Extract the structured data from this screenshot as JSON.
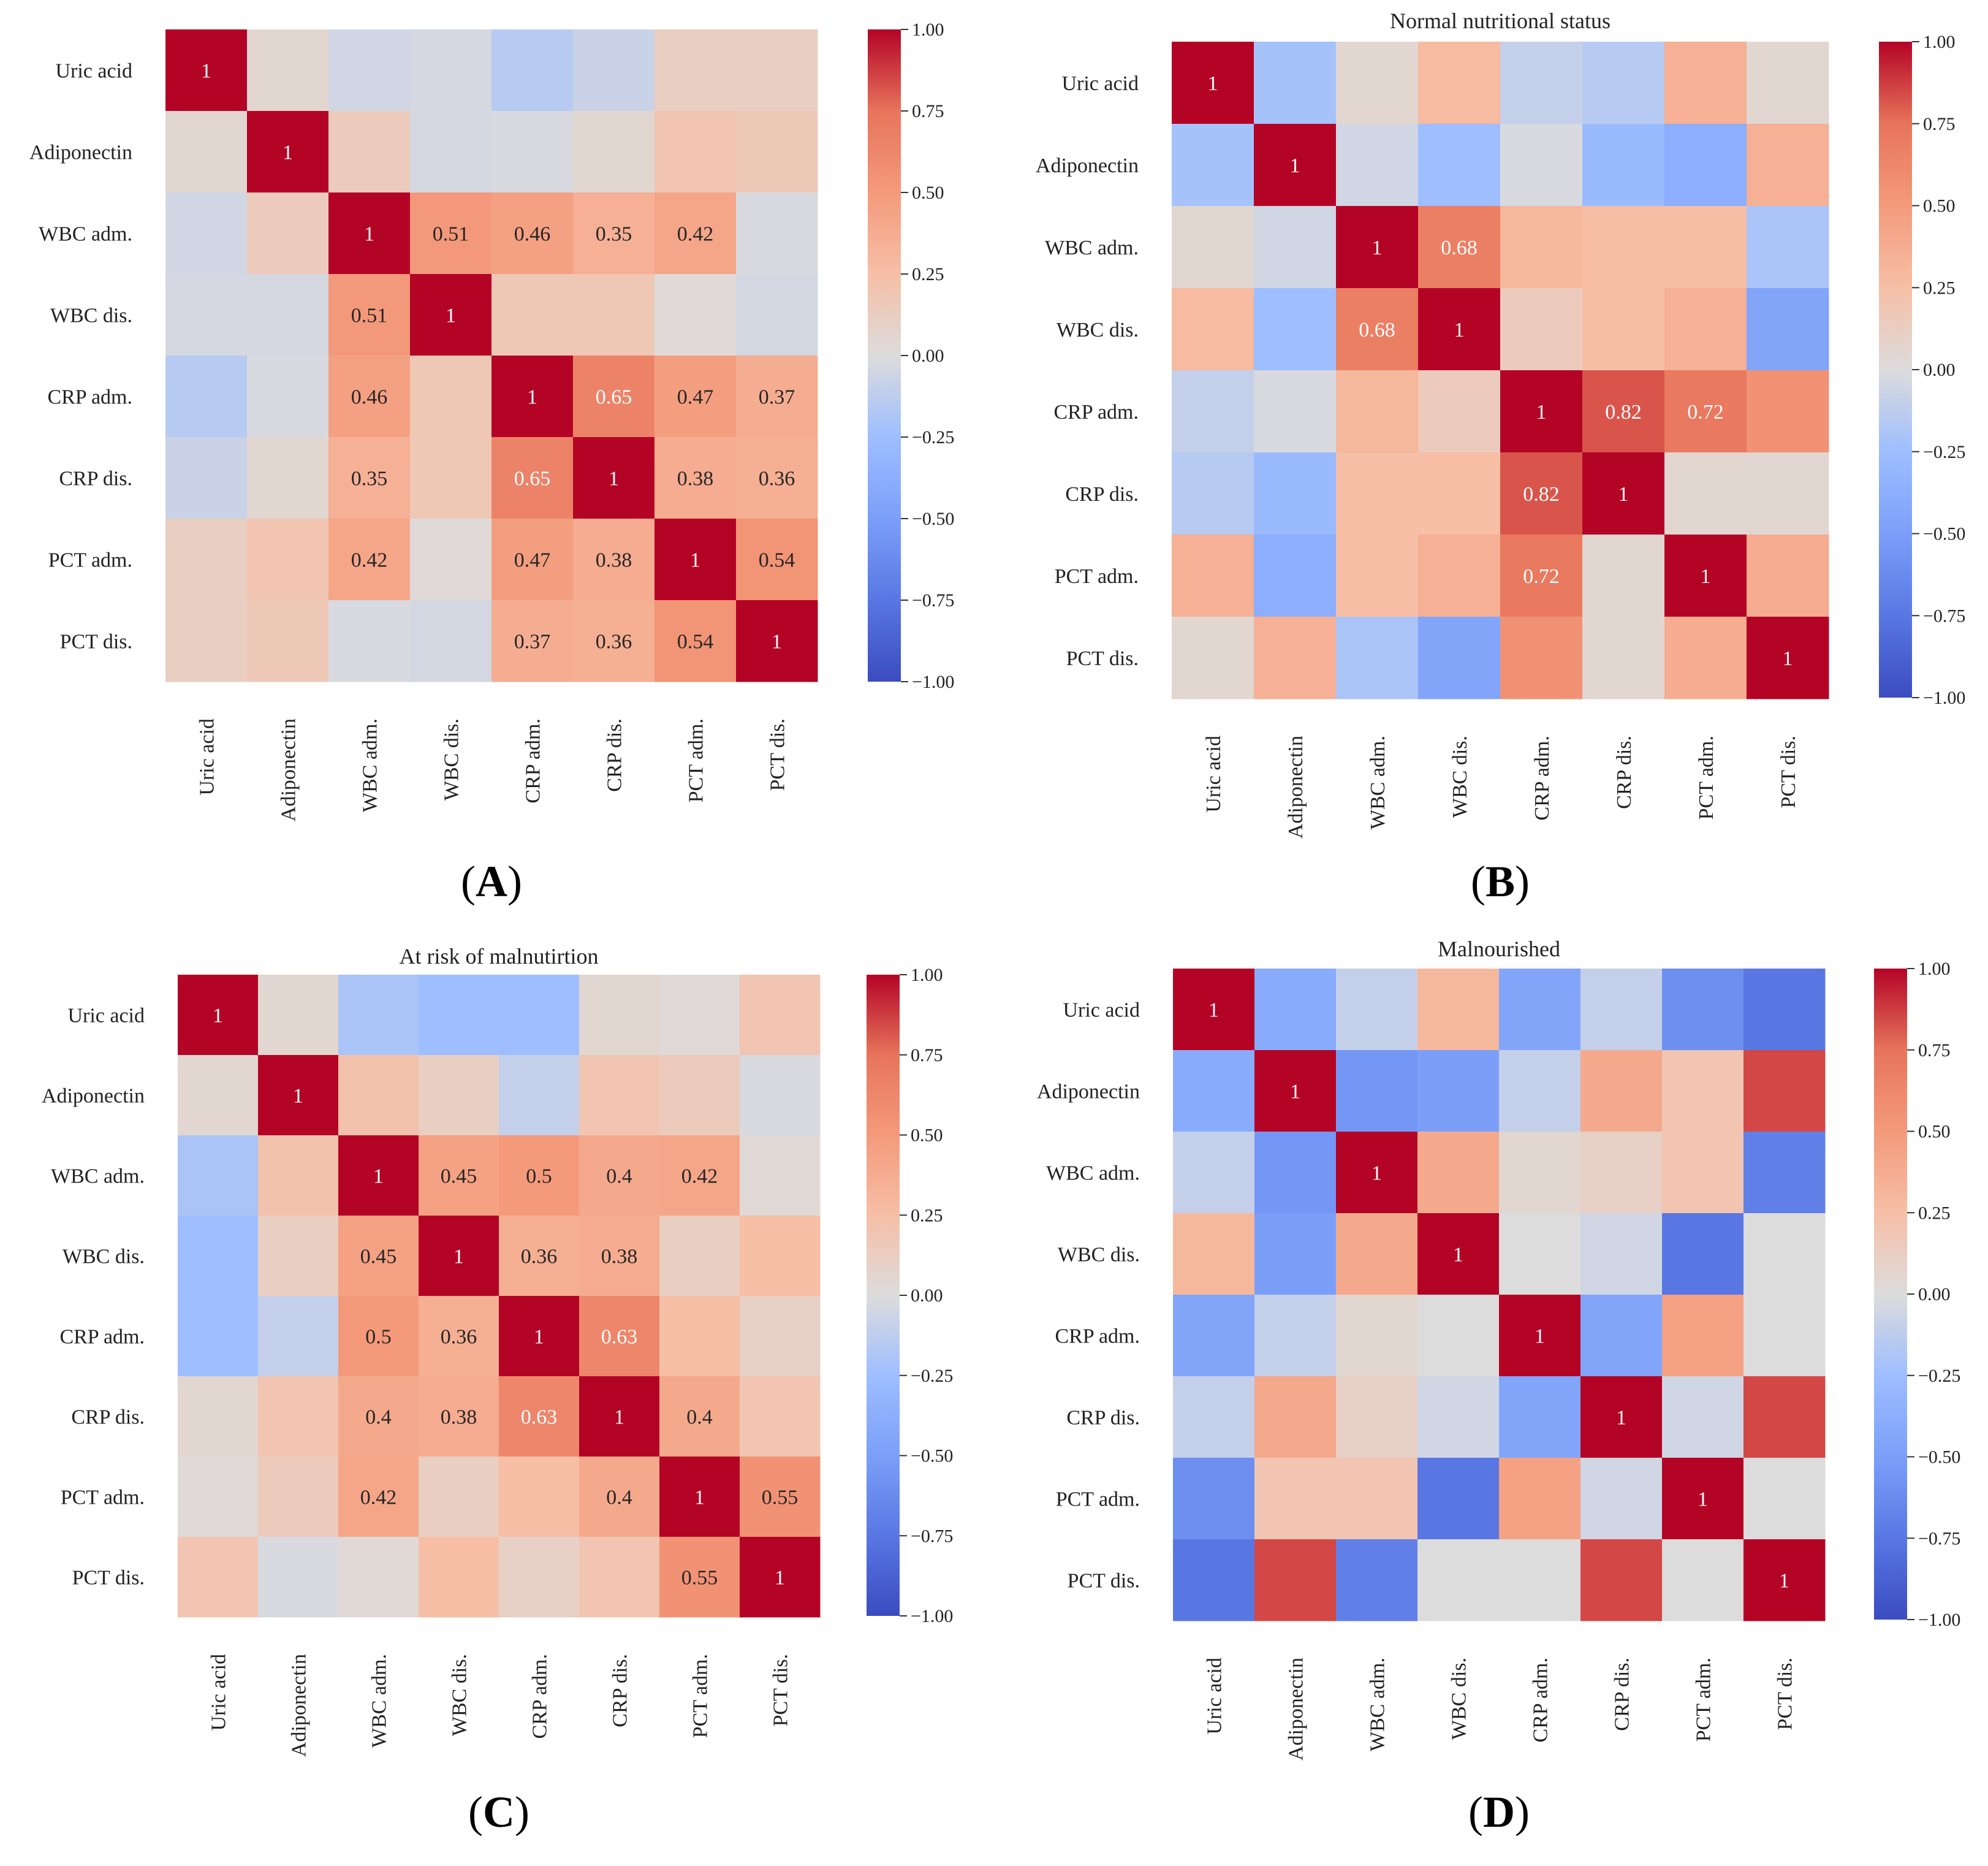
{
  "variables": [
    "Uric acid",
    "Adiponectin",
    "WBC adm.",
    "WBC dis.",
    "CRP adm.",
    "CRP dis.",
    "PCT adm.",
    "PCT dis."
  ],
  "colorscale": {
    "name": "coolwarm",
    "min": -1.0,
    "max": 1.0,
    "ticks": [
      "1.00",
      "0.75",
      "0.50",
      "0.25",
      "0.00",
      "−0.25",
      "−0.50",
      "−0.75",
      "−1.00"
    ]
  },
  "chart_data": [
    {
      "type": "heatmap",
      "panel": "A",
      "caption_letter": "A",
      "title": "",
      "labels": [
        "Uric acid",
        "Adiponectin",
        "WBC adm.",
        "WBC dis.",
        "CRP adm.",
        "CRP dis.",
        "PCT adm.",
        "PCT dis."
      ],
      "values": [
        [
          1.0,
          0.05,
          -0.05,
          -0.03,
          -0.15,
          -0.08,
          0.12,
          0.12
        ],
        [
          0.05,
          1.0,
          0.15,
          -0.03,
          -0.02,
          0.05,
          0.2,
          0.17
        ],
        [
          -0.05,
          0.15,
          1.0,
          0.51,
          0.46,
          0.35,
          0.42,
          -0.02
        ],
        [
          -0.03,
          -0.03,
          0.51,
          1.0,
          0.18,
          0.18,
          0.02,
          -0.04
        ],
        [
          -0.15,
          -0.02,
          0.46,
          0.18,
          1.0,
          0.65,
          0.47,
          0.37
        ],
        [
          -0.08,
          0.05,
          0.35,
          0.18,
          0.65,
          1.0,
          0.38,
          0.36
        ],
        [
          0.12,
          0.2,
          0.42,
          0.02,
          0.47,
          0.38,
          1.0,
          0.54
        ],
        [
          0.12,
          0.17,
          -0.02,
          -0.04,
          0.37,
          0.36,
          0.54,
          1.0
        ]
      ],
      "annotations": [
        [
          "1",
          "",
          "",
          "",
          "",
          "",
          "",
          ""
        ],
        [
          "",
          "1",
          "",
          "",
          "",
          "",
          "",
          ""
        ],
        [
          "",
          "",
          "1",
          "0.51",
          "0.46",
          "0.35",
          "0.42",
          ""
        ],
        [
          "",
          "",
          "0.51",
          "1",
          "",
          "",
          "",
          ""
        ],
        [
          "",
          "",
          "0.46",
          "",
          "1",
          "0.65",
          "0.47",
          "0.37"
        ],
        [
          "",
          "",
          "0.35",
          "",
          "0.65",
          "1",
          "0.38",
          "0.36"
        ],
        [
          "",
          "",
          "0.42",
          "",
          "0.47",
          "0.38",
          "1",
          "0.54"
        ],
        [
          "",
          "",
          "",
          "",
          "0.37",
          "0.36",
          "0.54",
          "1"
        ]
      ]
    },
    {
      "type": "heatmap",
      "panel": "B",
      "caption_letter": "B",
      "title": "Normal nutritional status",
      "labels": [
        "Uric acid",
        "Adiponectin",
        "WBC adm.",
        "WBC dis.",
        "CRP adm.",
        "CRP dis.",
        "PCT adm.",
        "PCT dis."
      ],
      "values": [
        [
          1.0,
          -0.22,
          0.05,
          0.28,
          -0.1,
          -0.15,
          0.35,
          0.05
        ],
        [
          -0.22,
          1.0,
          -0.05,
          -0.25,
          -0.02,
          -0.28,
          -0.38,
          0.35
        ],
        [
          0.05,
          -0.05,
          1.0,
          0.68,
          0.3,
          0.25,
          0.25,
          -0.2
        ],
        [
          0.28,
          -0.25,
          0.68,
          1.0,
          0.15,
          0.25,
          0.35,
          -0.45
        ],
        [
          -0.1,
          -0.02,
          0.3,
          0.15,
          1.0,
          0.82,
          0.72,
          0.55
        ],
        [
          -0.15,
          -0.28,
          0.25,
          0.25,
          0.82,
          1.0,
          0.05,
          0.05
        ],
        [
          0.35,
          -0.38,
          0.25,
          0.35,
          0.72,
          0.05,
          1.0,
          0.38
        ],
        [
          0.05,
          0.35,
          -0.2,
          -0.45,
          0.55,
          0.05,
          0.38,
          1.0
        ]
      ],
      "annotations": [
        [
          "1",
          "",
          "",
          "",
          "",
          "",
          "",
          ""
        ],
        [
          "",
          "1",
          "",
          "",
          "",
          "",
          "",
          ""
        ],
        [
          "",
          "",
          "1",
          "0.68",
          "",
          "",
          "",
          ""
        ],
        [
          "",
          "",
          "0.68",
          "1",
          "",
          "",
          "",
          ""
        ],
        [
          "",
          "",
          "",
          "",
          "1",
          "0.82",
          "0.72",
          ""
        ],
        [
          "",
          "",
          "",
          "",
          "0.82",
          "1",
          "",
          ""
        ],
        [
          "",
          "",
          "",
          "",
          "0.72",
          "",
          "1",
          ""
        ],
        [
          "",
          "",
          "",
          "",
          "",
          "",
          "",
          "1"
        ]
      ]
    },
    {
      "type": "heatmap",
      "panel": "C",
      "caption_letter": "C",
      "title": "At risk of malnutirtion",
      "labels": [
        "Uric acid",
        "Adiponectin",
        "WBC adm.",
        "WBC dis.",
        "CRP adm.",
        "CRP dis.",
        "PCT adm.",
        "PCT dis."
      ],
      "values": [
        [
          1.0,
          0.05,
          -0.2,
          -0.25,
          -0.25,
          0.05,
          0.02,
          0.2
        ],
        [
          0.05,
          1.0,
          0.22,
          0.12,
          -0.1,
          0.2,
          0.15,
          -0.02
        ],
        [
          -0.2,
          0.22,
          1.0,
          0.45,
          0.5,
          0.4,
          0.42,
          0.03
        ],
        [
          -0.25,
          0.12,
          0.45,
          1.0,
          0.36,
          0.38,
          0.12,
          0.25
        ],
        [
          -0.25,
          -0.1,
          0.5,
          0.36,
          1.0,
          0.63,
          0.25,
          0.1
        ],
        [
          0.05,
          0.2,
          0.4,
          0.38,
          0.63,
          1.0,
          0.4,
          0.2
        ],
        [
          0.02,
          0.15,
          0.42,
          0.12,
          0.25,
          0.4,
          1.0,
          0.55
        ],
        [
          0.2,
          -0.02,
          0.03,
          0.25,
          0.1,
          0.2,
          0.55,
          1.0
        ]
      ],
      "annotations": [
        [
          "1",
          "",
          "",
          "",
          "",
          "",
          "",
          ""
        ],
        [
          "",
          "1",
          "",
          "",
          "",
          "",
          "",
          ""
        ],
        [
          "",
          "",
          "1",
          "0.45",
          "0.5",
          "0.4",
          "0.42",
          ""
        ],
        [
          "",
          "",
          "0.45",
          "1",
          "0.36",
          "0.38",
          "",
          ""
        ],
        [
          "",
          "",
          "0.5",
          "0.36",
          "1",
          "0.63",
          "",
          ""
        ],
        [
          "",
          "",
          "0.4",
          "0.38",
          "0.63",
          "1",
          "0.4",
          ""
        ],
        [
          "",
          "",
          "0.42",
          "",
          "",
          "0.4",
          "1",
          "0.55"
        ],
        [
          "",
          "",
          "",
          "",
          "",
          "",
          "0.55",
          "1"
        ]
      ]
    },
    {
      "type": "heatmap",
      "panel": "D",
      "caption_letter": "D",
      "title": "Malnourished",
      "labels": [
        "Uric acid",
        "Adiponectin",
        "WBC adm.",
        "WBC dis.",
        "CRP adm.",
        "CRP dis.",
        "PCT adm.",
        "PCT dis."
      ],
      "values": [
        [
          1.0,
          -0.4,
          -0.1,
          0.3,
          -0.45,
          -0.1,
          -0.6,
          -0.75
        ],
        [
          -0.4,
          1.0,
          -0.55,
          -0.5,
          -0.1,
          0.4,
          0.2,
          0.85
        ],
        [
          -0.1,
          -0.55,
          1.0,
          0.4,
          0.05,
          0.1,
          0.2,
          -0.7
        ],
        [
          0.3,
          -0.5,
          0.4,
          1.0,
          0.0,
          -0.05,
          -0.75,
          0.0
        ],
        [
          -0.45,
          -0.1,
          0.05,
          0.0,
          1.0,
          -0.45,
          0.45,
          0.0
        ],
        [
          -0.1,
          0.4,
          0.1,
          -0.05,
          -0.45,
          1.0,
          -0.05,
          0.85
        ],
        [
          -0.6,
          0.2,
          0.2,
          -0.75,
          0.45,
          -0.05,
          1.0,
          0.0
        ],
        [
          -0.75,
          0.85,
          -0.7,
          0.0,
          0.0,
          0.85,
          0.0,
          1.0
        ]
      ],
      "annotations": [
        [
          "1",
          "",
          "",
          "",
          "",
          "",
          "",
          ""
        ],
        [
          "",
          "1",
          "",
          "",
          "",
          "",
          "",
          ""
        ],
        [
          "",
          "",
          "1",
          "",
          "",
          "",
          "",
          ""
        ],
        [
          "",
          "",
          "",
          "1",
          "",
          "",
          "",
          ""
        ],
        [
          "",
          "",
          "",
          "",
          "1",
          "",
          "",
          ""
        ],
        [
          "",
          "",
          "",
          "",
          "",
          "1",
          "",
          ""
        ],
        [
          "",
          "",
          "",
          "",
          "",
          "",
          "1",
          ""
        ],
        [
          "",
          "",
          "",
          "",
          "",
          "",
          "",
          "1"
        ]
      ]
    }
  ]
}
